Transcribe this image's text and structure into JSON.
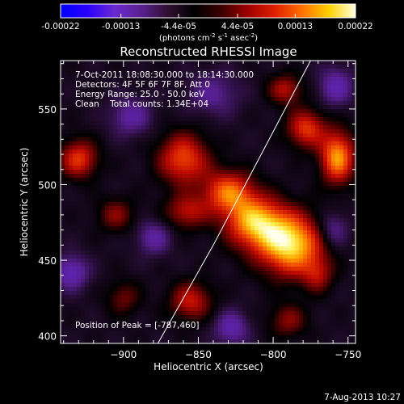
{
  "colorbar": {
    "ticks": [
      "-0.00022",
      "-0.00013",
      "-4.4e-05",
      "4.4e-05",
      "0.00013",
      "0.00022"
    ],
    "tick_values": [
      -0.00022,
      -0.00013,
      -4.4e-05,
      4.4e-05,
      0.00013,
      0.00022
    ],
    "range": [
      -0.00022,
      0.00022
    ],
    "units_base": "(photons cm",
    "units_exp1": "-2",
    "units_mid": " s",
    "units_exp2": "-1",
    "units_tail": " asec",
    "units_exp3": "-2",
    "units_close": ")",
    "colors": [
      "#0000ff",
      "#2a00ff",
      "#6a2ad0",
      "#5a2090",
      "#301030",
      "#000000",
      "#3a0000",
      "#a00000",
      "#e02000",
      "#ff7000",
      "#ffd000",
      "#ffffe0"
    ]
  },
  "chart_data": {
    "type": "heatmap",
    "title": "Reconstructed RHESSI Image",
    "xlabel": "Heliocentric X (arcsec)",
    "ylabel": "Heliocentric Y (arcsec)",
    "xlim": [
      -942,
      -745
    ],
    "ylim": [
      395,
      582
    ],
    "x_ticks": [
      -900,
      -850,
      -800,
      -750
    ],
    "y_ticks": [
      400,
      450,
      500,
      550
    ],
    "x_tick_labels": [
      "−900",
      "−850",
      "−800",
      "−750"
    ],
    "y_tick_labels": [
      "400",
      "450",
      "500",
      "550"
    ],
    "peak": [
      -787,
      460
    ],
    "limb_line": [
      [
        -877,
        395
      ],
      [
        -840,
        460
      ],
      [
        -808,
        520
      ],
      [
        -775,
        582
      ]
    ],
    "blobs": [
      {
        "x": -788,
        "y": 460,
        "sx": 15,
        "sy": 14,
        "a": 1.0
      },
      {
        "x": -812,
        "y": 475,
        "sx": 14,
        "sy": 12,
        "a": 0.85
      },
      {
        "x": -830,
        "y": 495,
        "sx": 12,
        "sy": 10,
        "a": 0.7
      },
      {
        "x": -757,
        "y": 518,
        "sx": 8,
        "sy": 12,
        "a": 0.85
      },
      {
        "x": -778,
        "y": 537,
        "sx": 9,
        "sy": 9,
        "a": 0.6
      },
      {
        "x": -792,
        "y": 563,
        "sx": 8,
        "sy": 7,
        "a": 0.45
      },
      {
        "x": -860,
        "y": 517,
        "sx": 12,
        "sy": 12,
        "a": 0.65
      },
      {
        "x": -858,
        "y": 482,
        "sx": 10,
        "sy": 8,
        "a": 0.45
      },
      {
        "x": -930,
        "y": 517,
        "sx": 9,
        "sy": 9,
        "a": 0.6
      },
      {
        "x": -905,
        "y": 480,
        "sx": 9,
        "sy": 8,
        "a": 0.35
      },
      {
        "x": -855,
        "y": 423,
        "sx": 10,
        "sy": 9,
        "a": 0.5
      },
      {
        "x": -900,
        "y": 425,
        "sx": 8,
        "sy": 8,
        "a": 0.3
      },
      {
        "x": -790,
        "y": 410,
        "sx": 9,
        "sy": 8,
        "a": 0.35
      },
      {
        "x": -770,
        "y": 440,
        "sx": 7,
        "sy": 8,
        "a": 0.35
      },
      {
        "x": -935,
        "y": 442,
        "sx": 8,
        "sy": 8,
        "a": -0.45
      },
      {
        "x": -880,
        "y": 465,
        "sx": 8,
        "sy": 8,
        "a": -0.35
      },
      {
        "x": -895,
        "y": 545,
        "sx": 10,
        "sy": 9,
        "a": -0.35
      },
      {
        "x": -758,
        "y": 565,
        "sx": 8,
        "sy": 9,
        "a": -0.4
      },
      {
        "x": -828,
        "y": 405,
        "sx": 8,
        "sy": 8,
        "a": -0.4
      },
      {
        "x": -760,
        "y": 470,
        "sx": 7,
        "sy": 8,
        "a": -0.35
      },
      {
        "x": -840,
        "y": 560,
        "sx": 12,
        "sy": 10,
        "a": -0.3
      }
    ]
  },
  "info": {
    "time": "7-Oct-2011 18:08:30.000 to 18:14:30.000",
    "detectors": "Detectors: 4F 5F 6F 7F 8F, Att 0",
    "energy": "Energy Range: 25.0 - 50.0 keV",
    "clean": "Clean    Total counts: 1.34E+04",
    "peak_label": "Position of Peak = [-787,460]"
  },
  "footer": {
    "date": "7-Aug-2013 10:27"
  }
}
